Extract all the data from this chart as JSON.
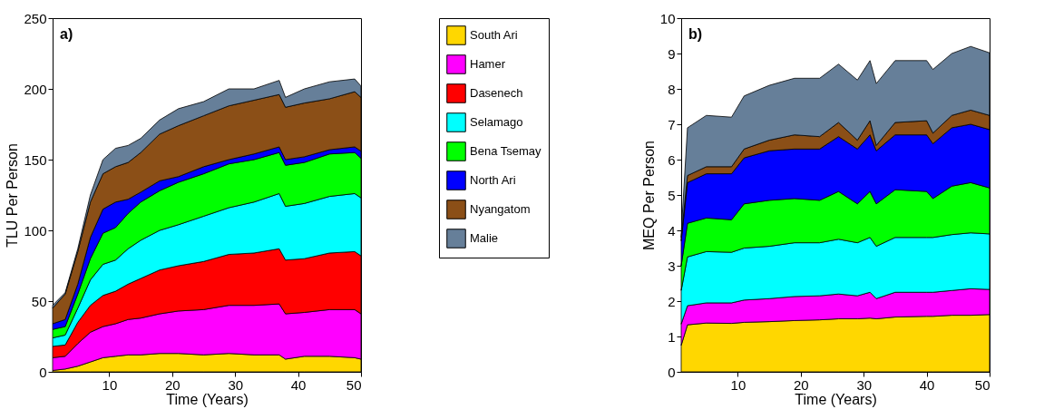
{
  "chart_data": [
    {
      "type": "area",
      "stacked": true,
      "xlabel": "Time (Years)",
      "ylabel": "TLU Per Person",
      "annotations": [
        "a)"
      ],
      "legend": "right",
      "x": [
        1,
        3,
        5,
        7,
        9,
        11,
        13,
        15,
        18,
        21,
        25,
        29,
        33,
        37,
        38,
        41,
        45,
        49,
        50
      ],
      "xlim": [
        1,
        50
      ],
      "xticks": [
        10,
        20,
        30,
        40,
        50
      ],
      "ylim": [
        0,
        250
      ],
      "yticks": [
        0,
        50,
        100,
        150,
        200,
        250
      ],
      "series": [
        {
          "name": "South Ari",
          "color": "#ffd700",
          "values": [
            1,
            2,
            4,
            7,
            10,
            11,
            12,
            12,
            13,
            13,
            12,
            13,
            12,
            12,
            9,
            11,
            11,
            10,
            9
          ]
        },
        {
          "name": "Hamer",
          "color": "#ff00ff",
          "values": [
            9,
            9,
            16,
            21,
            22,
            23,
            25,
            26,
            28,
            30,
            32,
            34,
            35,
            36,
            32,
            31,
            33,
            34,
            32
          ]
        },
        {
          "name": "Dasenech",
          "color": "#ff0000",
          "values": [
            8,
            8,
            15,
            19,
            22,
            23,
            25,
            28,
            31,
            32,
            34,
            36,
            37,
            39,
            38,
            38,
            40,
            41,
            41
          ]
        },
        {
          "name": "Selamago",
          "color": "#00ffff",
          "values": [
            6,
            7,
            10,
            18,
            22,
            22,
            25,
            27,
            28,
            29,
            32,
            33,
            36,
            39,
            38,
            39,
            40,
            41,
            41
          ]
        },
        {
          "name": "Bena Tsemay",
          "color": "#00ff00",
          "values": [
            6,
            6,
            10,
            15,
            22,
            23,
            25,
            27,
            28,
            30,
            30,
            31,
            30,
            29,
            29,
            29,
            30,
            29,
            28
          ]
        },
        {
          "name": "North Ari",
          "color": "#0000ff",
          "values": [
            4,
            5,
            7,
            15,
            17,
            18,
            10,
            7,
            7,
            4,
            5,
            3,
            4,
            4,
            4,
            4,
            3,
            4,
            5
          ]
        },
        {
          "name": "Nyangatom",
          "color": "#8b4f17",
          "values": [
            11,
            18,
            23,
            25,
            25,
            25,
            26,
            28,
            33,
            36,
            36,
            38,
            38,
            37,
            37,
            38,
            36,
            39,
            38
          ]
        },
        {
          "name": "Malie",
          "color": "#667f99",
          "values": [
            2,
            1,
            2,
            5,
            10,
            13,
            12,
            10,
            10,
            12,
            10,
            12,
            8,
            10,
            7,
            10,
            12,
            9,
            8
          ]
        }
      ]
    },
    {
      "type": "area",
      "stacked": true,
      "xlabel": "Time (Years)",
      "ylabel": "MEQ Per Person",
      "annotations": [
        "b)"
      ],
      "x": [
        1,
        2,
        5,
        9,
        11,
        15,
        19,
        23,
        26,
        29,
        31,
        32,
        35,
        40,
        41,
        44,
        47,
        50
      ],
      "xlim": [
        1,
        50
      ],
      "xticks": [
        10,
        20,
        30,
        40,
        50
      ],
      "ylim": [
        0,
        10
      ],
      "yticks": [
        0,
        1,
        2,
        3,
        4,
        5,
        6,
        7,
        8,
        9,
        10
      ],
      "series": [
        {
          "color": "#ffd700",
          "values": [
            0.75,
            1.33,
            1.38,
            1.37,
            1.4,
            1.42,
            1.45,
            1.47,
            1.5,
            1.5,
            1.52,
            1.5,
            1.55,
            1.57,
            1.57,
            1.6,
            1.6,
            1.62
          ]
        },
        {
          "color": "#ff00ff",
          "values": [
            0.6,
            0.54,
            0.57,
            0.58,
            0.63,
            0.65,
            0.68,
            0.68,
            0.7,
            0.65,
            0.73,
            0.57,
            0.7,
            0.68,
            0.68,
            0.7,
            0.75,
            0.71
          ]
        },
        {
          "color": "#00ffff",
          "values": [
            0.95,
            1.38,
            1.45,
            1.43,
            1.47,
            1.48,
            1.52,
            1.5,
            1.55,
            1.5,
            1.55,
            1.48,
            1.55,
            1.55,
            1.55,
            1.58,
            1.58,
            1.57
          ]
        },
        {
          "color": "#00ff00",
          "values": [
            0.7,
            0.95,
            0.95,
            0.92,
            1.25,
            1.3,
            1.25,
            1.2,
            1.35,
            1.1,
            1.3,
            1.2,
            1.35,
            1.3,
            1.1,
            1.37,
            1.42,
            1.3
          ]
        },
        {
          "color": "#0000ff",
          "values": [
            0.7,
            1.15,
            1.25,
            1.3,
            1.3,
            1.4,
            1.4,
            1.45,
            1.55,
            1.55,
            1.6,
            1.5,
            1.55,
            1.6,
            1.55,
            1.65,
            1.65,
            1.65
          ]
        },
        {
          "color": "#8b4f17",
          "values": [
            0.1,
            0.2,
            0.2,
            0.2,
            0.25,
            0.3,
            0.4,
            0.35,
            0.4,
            0.25,
            0.4,
            0.15,
            0.35,
            0.4,
            0.3,
            0.35,
            0.4,
            0.4
          ]
        },
        {
          "color": "#667f99",
          "values": [
            0.1,
            1.35,
            1.45,
            1.4,
            1.5,
            1.55,
            1.6,
            1.65,
            1.65,
            1.7,
            1.7,
            1.75,
            1.75,
            1.7,
            1.8,
            1.75,
            1.8,
            1.77
          ]
        }
      ]
    }
  ]
}
